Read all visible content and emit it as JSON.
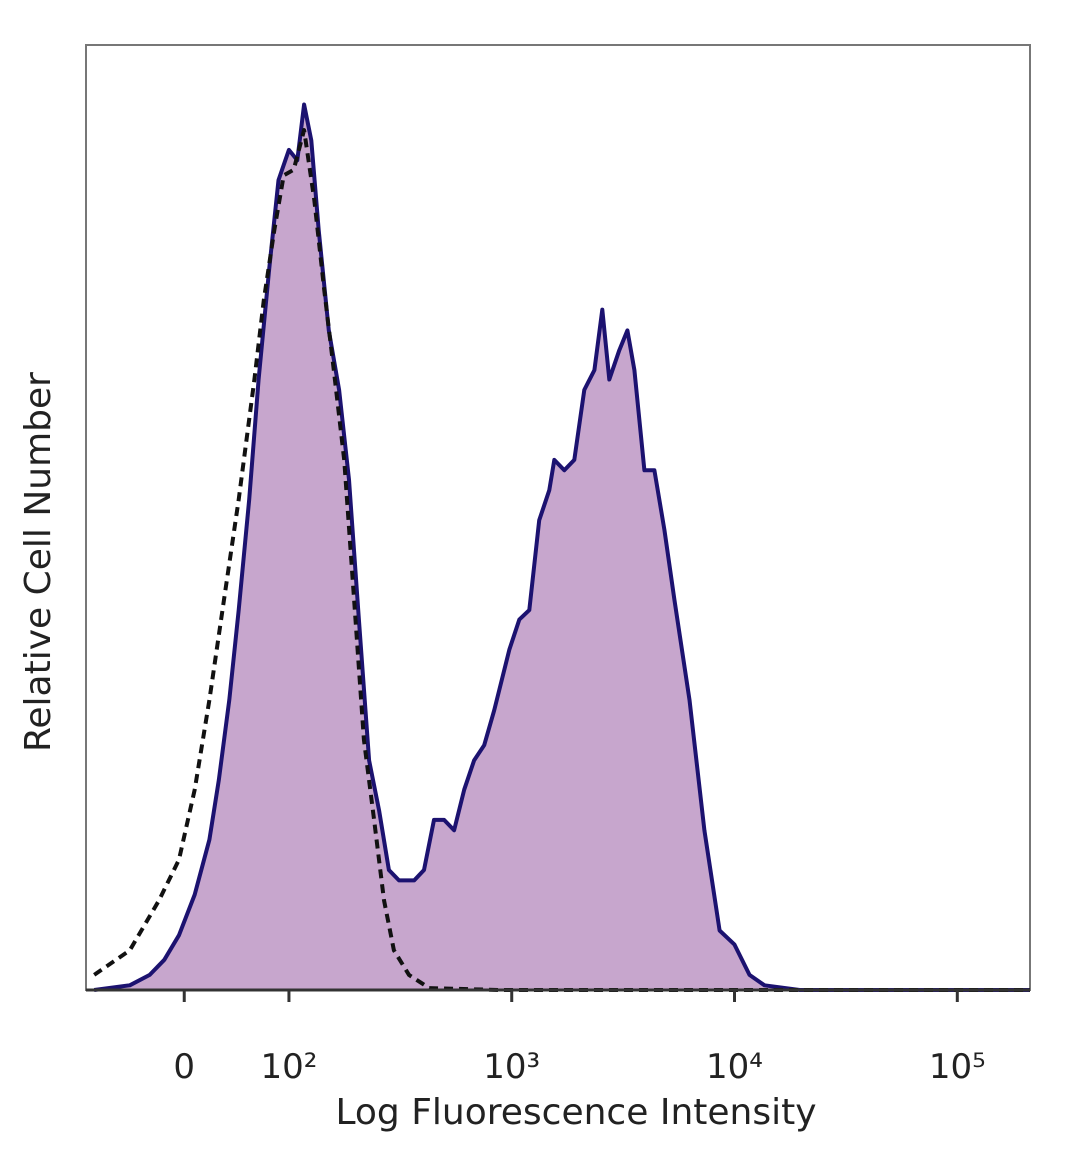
{
  "chart_data": {
    "type": "histogram-overlay",
    "xlabel": "Log Fluorescence Intensity",
    "ylabel": "Relative Cell Number",
    "xscale": "symlog",
    "linthresh": 100,
    "xlim": [
      -90,
      212000
    ],
    "ylim": [
      0,
      100
    ],
    "xticks": [
      0,
      {
        "value": 100,
        "label": "10²"
      },
      {
        "value": 1000,
        "label": "10³"
      },
      {
        "value": 10000,
        "label": "10⁴"
      },
      {
        "value": 100000,
        "label": "10⁵"
      }
    ],
    "series": [
      {
        "color": "#1c1270",
        "fill": "#c7a6cd",
        "dashed": false,
        "x": [
          -86,
          -52,
          -33,
          -19,
          -5,
          10,
          24,
          33,
          43,
          52,
          62,
          71,
          81,
          90,
          100,
          109,
          117,
          126,
          136,
          151,
          168,
          186,
          206,
          229,
          254,
          281,
          312,
          365,
          404,
          448,
          497,
          551,
          612,
          678,
          752,
          834,
          975,
          1081,
          1199,
          1329,
          1474,
          1552,
          1722,
          1910,
          2118,
          2349,
          2551,
          2742,
          3041,
          3304,
          3554,
          3942,
          4370,
          4845,
          5372,
          6277,
          7329,
          8570,
          10000,
          11670,
          13640,
          19590,
          55200,
          211800
        ],
        "values": [
          0,
          0.5,
          1.6,
          3.2,
          5.8,
          10.1,
          15.9,
          22.2,
          30.7,
          40.2,
          51.9,
          64.6,
          76.2,
          85.7,
          88.9,
          87.8,
          93.7,
          89.9,
          80.4,
          69.8,
          63.5,
          54.0,
          39.2,
          24.3,
          19.0,
          12.7,
          11.6,
          11.6,
          12.7,
          18.0,
          18.0,
          16.9,
          21.2,
          24.3,
          25.9,
          29.6,
          36.0,
          39.2,
          40.2,
          49.7,
          52.9,
          56.1,
          55.0,
          56.1,
          63.5,
          65.6,
          72.0,
          64.6,
          67.7,
          69.8,
          65.6,
          55.0,
          55.0,
          48.7,
          41.3,
          30.7,
          16.9,
          6.3,
          4.8,
          1.6,
          0.5,
          0,
          0,
          0
        ]
      },
      {
        "color": "#111111",
        "dashed": true,
        "x": [
          -86,
          -52,
          -24,
          -5,
          10,
          24,
          38,
          52,
          67,
          76,
          86,
          95,
          105,
          117,
          130,
          144,
          159,
          177,
          196,
          217,
          241,
          267,
          296,
          346,
          426,
          879,
          211800
        ],
        "values": [
          1.6,
          4.2,
          9.5,
          13.8,
          21.2,
          30.7,
          41.3,
          51.9,
          64.6,
          73.0,
          80.4,
          86.2,
          86.8,
          91.0,
          83.6,
          74.1,
          65.6,
          56.1,
          41.3,
          26.5,
          18.0,
          9.5,
          4.2,
          1.6,
          0.2,
          0,
          0
        ]
      }
    ]
  }
}
